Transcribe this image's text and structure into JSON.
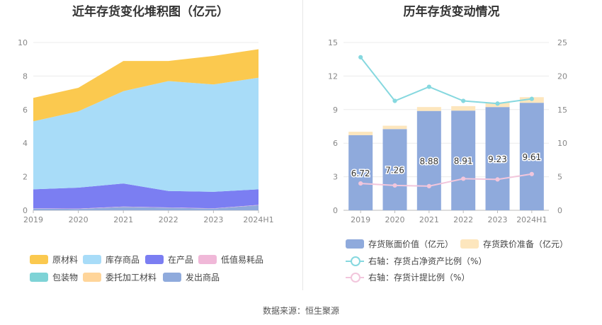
{
  "source": "数据来源：恒生聚源",
  "chart_data": [
    {
      "type": "area",
      "stacked": true,
      "title": "近年存货变化堆积图（亿元）",
      "categories": [
        "2019",
        "2020",
        "2021",
        "2022",
        "2023",
        "2024H1"
      ],
      "ylim": [
        0,
        10
      ],
      "yticks": [
        0,
        2,
        4,
        6,
        8,
        10
      ],
      "grid": true,
      "legend_position": "bottom",
      "series": [
        {
          "name": "发出商品",
          "color": "#8faadc",
          "values": [
            0.1,
            0.08,
            0.2,
            0.15,
            0.1,
            0.3
          ]
        },
        {
          "name": "委托加工材料",
          "color": "#ffd59a",
          "values": [
            0.0,
            0.0,
            0.0,
            0.0,
            0.0,
            0.0
          ]
        },
        {
          "name": "包装物",
          "color": "#7ed3d6",
          "values": [
            0.0,
            0.0,
            0.0,
            0.0,
            0.0,
            0.0
          ]
        },
        {
          "name": "低值易耗品",
          "color": "#f0b8d8",
          "values": [
            0.02,
            0.02,
            0.02,
            0.02,
            0.02,
            0.02
          ]
        },
        {
          "name": "在产品",
          "color": "#7b7ef2",
          "values": [
            1.13,
            1.25,
            1.38,
            0.98,
            0.98,
            0.93
          ]
        },
        {
          "name": "库存商品",
          "color": "#a8dcf8",
          "values": [
            4.05,
            4.55,
            5.5,
            6.55,
            6.4,
            6.65
          ]
        },
        {
          "name": "原材料",
          "color": "#fbc94f",
          "values": [
            1.4,
            1.4,
            1.8,
            1.2,
            1.7,
            1.7
          ]
        }
      ],
      "legend_order": [
        "原材料",
        "库存商品",
        "在产品",
        "低值易耗品",
        "包装物",
        "委托加工材料",
        "发出商品"
      ]
    },
    {
      "type": "bar",
      "title": "历年存货变动情况",
      "categories": [
        "2019",
        "2020",
        "2021",
        "2022",
        "2023",
        "2024H1"
      ],
      "ylim": [
        0,
        15
      ],
      "yticks": [
        0,
        3,
        6,
        9,
        12,
        15
      ],
      "y2lim": [
        0,
        25
      ],
      "y2ticks": [
        0,
        5,
        10,
        15,
        20,
        25
      ],
      "stacked": true,
      "legend_position": "bottom",
      "series": [
        {
          "name": "存货账面价值（亿元）",
          "color": "#8faadc",
          "axis": "left",
          "values": [
            6.72,
            7.26,
            8.88,
            8.91,
            9.23,
            9.61
          ],
          "labels": [
            "6.72",
            "7.26",
            "8.88",
            "8.91",
            "9.23",
            "9.61"
          ]
        },
        {
          "name": "存货跌价准备（亿元）",
          "color": "#fde6bd",
          "axis": "left",
          "values": [
            0.3,
            0.3,
            0.35,
            0.4,
            0.4,
            0.5
          ]
        },
        {
          "name": "右轴：存货占净资产比例（%）",
          "type": "line",
          "color": "#86d8df",
          "axis": "right",
          "values": [
            22.8,
            16.3,
            18.4,
            16.3,
            15.9,
            16.6
          ]
        },
        {
          "name": "右轴：存货计提比例（%）",
          "type": "line",
          "color": "#f2c6dc",
          "axis": "right",
          "values": [
            4.0,
            3.7,
            3.6,
            4.7,
            4.6,
            5.4
          ]
        }
      ]
    }
  ]
}
